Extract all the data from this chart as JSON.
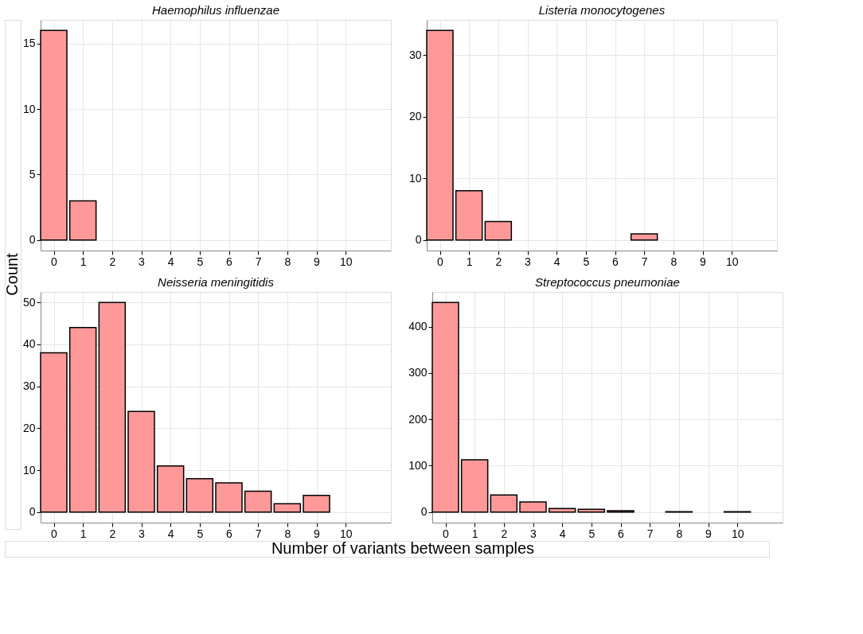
{
  "chart_data": [
    {
      "type": "bar",
      "title": "Haemophilus influenzae",
      "ylabel": "Count",
      "x": [
        0,
        1
      ],
      "values": [
        16,
        3
      ],
      "color": "#ff9999",
      "xlim": [
        -0.45,
        11.55
      ],
      "xticks": [
        0,
        1,
        2,
        3,
        4,
        5,
        6,
        7,
        8,
        9,
        10
      ],
      "ylim": [
        -0.8,
        16.8
      ],
      "yticks": [
        0,
        5,
        10,
        15
      ],
      "grid": true
    },
    {
      "type": "bar",
      "title": "Listeria monocytogenes",
      "x": [
        0,
        1,
        2,
        7
      ],
      "values": [
        34,
        8,
        3,
        1
      ],
      "color": "#ff9999",
      "xlim": [
        -0.45,
        11.55
      ],
      "xticks": [
        0,
        1,
        2,
        3,
        4,
        5,
        6,
        7,
        8,
        9,
        10
      ],
      "ylim": [
        -1.7,
        35.7
      ],
      "yticks": [
        0,
        10,
        20,
        30
      ],
      "grid": true
    },
    {
      "type": "bar",
      "title": "Neisseria meningitidis",
      "xlabel": "Number of variants between samples",
      "x": [
        0,
        1,
        2,
        3,
        4,
        5,
        6,
        7,
        8,
        9
      ],
      "values": [
        38,
        44,
        50,
        24,
        11,
        8,
        7,
        5,
        2,
        4
      ],
      "color": "#ff9999",
      "xlim": [
        -0.45,
        11.55
      ],
      "xticks": [
        0,
        1,
        2,
        3,
        4,
        5,
        6,
        7,
        8,
        9,
        10
      ],
      "ylim": [
        -2.5,
        52.5
      ],
      "yticks": [
        0,
        10,
        20,
        30,
        40,
        50
      ],
      "grid": true
    },
    {
      "type": "bar",
      "title": "Streptococcus pneumoniae",
      "x": [
        0,
        1,
        2,
        3,
        4,
        5,
        6,
        8,
        10
      ],
      "values": [
        452,
        113,
        37,
        22,
        8,
        6,
        3,
        1,
        1
      ],
      "color": "#ff9999",
      "xlim": [
        -0.45,
        11.55
      ],
      "xticks": [
        0,
        1,
        2,
        3,
        4,
        5,
        6,
        7,
        8,
        9,
        10
      ],
      "ylim": [
        -22.6,
        474.6
      ],
      "yticks": [
        0,
        100,
        200,
        300,
        400
      ],
      "grid": true
    }
  ]
}
